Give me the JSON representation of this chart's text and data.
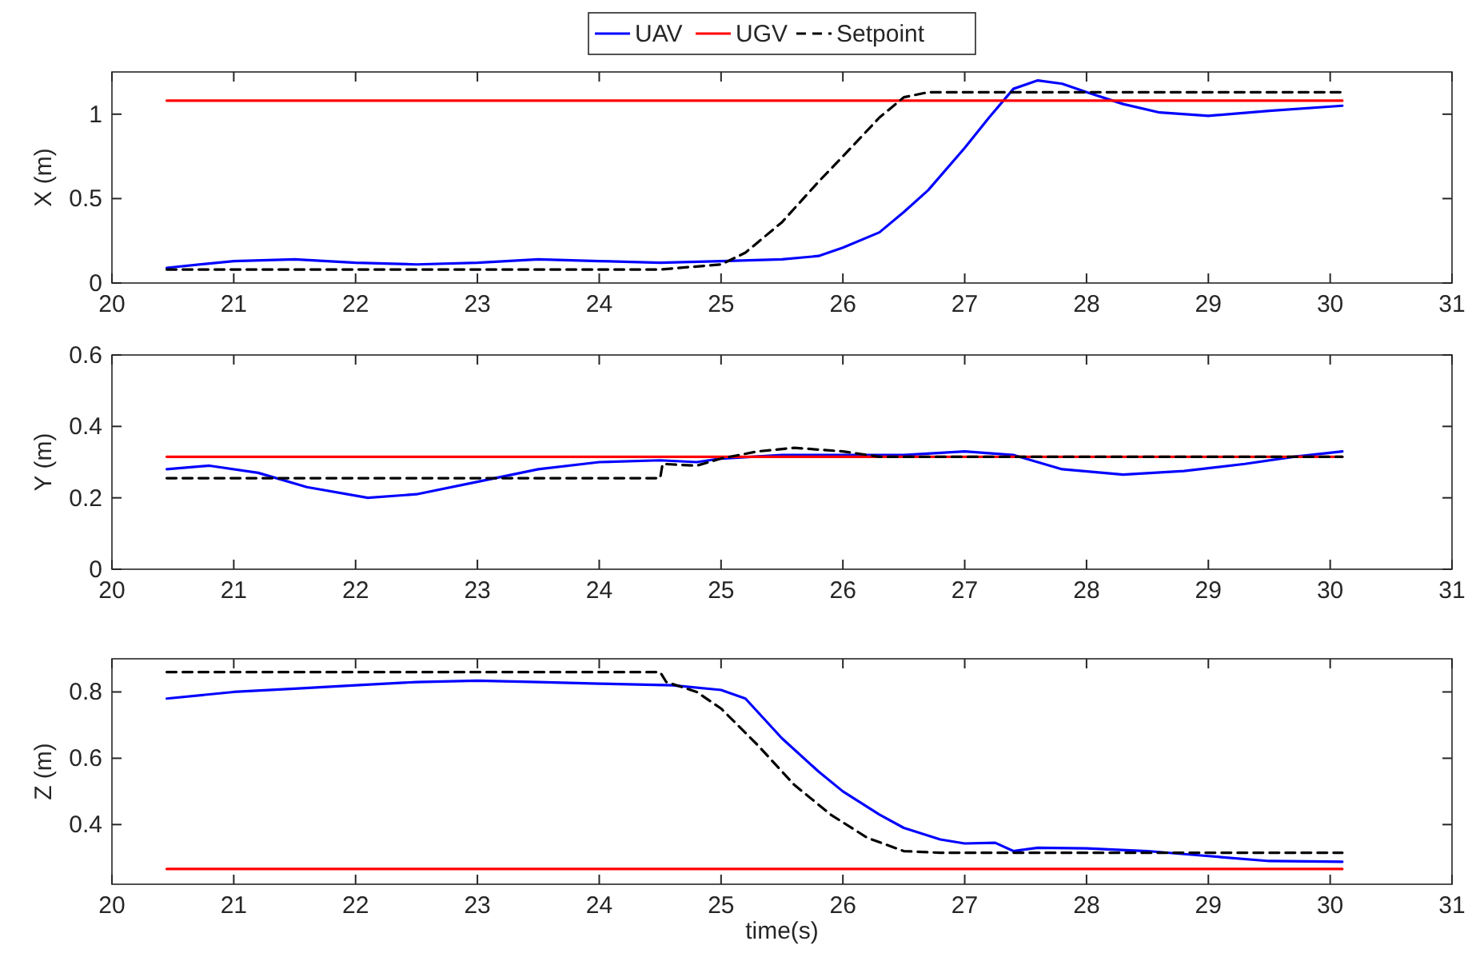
{
  "chart_data": [
    {
      "type": "line",
      "ylabel": "X (m)",
      "xlim": [
        20,
        31
      ],
      "xticks": [
        20,
        21,
        22,
        23,
        24,
        25,
        26,
        27,
        28,
        29,
        30,
        31
      ],
      "ylim": [
        0,
        1.25
      ],
      "yticks": [
        0,
        0.5,
        1
      ],
      "grid": false,
      "legend": "top",
      "series": [
        {
          "name": "UAV",
          "color": "#0000ff",
          "x": [
            20.45,
            21,
            21.5,
            22,
            22.5,
            23,
            23.5,
            24,
            24.5,
            25,
            25.5,
            25.8,
            26,
            26.3,
            26.5,
            26.7,
            27,
            27.2,
            27.4,
            27.6,
            27.8,
            28,
            28.3,
            28.6,
            29,
            29.5,
            30.1
          ],
          "values": [
            0.09,
            0.13,
            0.14,
            0.12,
            0.11,
            0.12,
            0.14,
            0.13,
            0.12,
            0.13,
            0.14,
            0.16,
            0.21,
            0.3,
            0.42,
            0.55,
            0.8,
            0.98,
            1.15,
            1.2,
            1.18,
            1.13,
            1.06,
            1.01,
            0.99,
            1.02,
            1.05
          ]
        },
        {
          "name": "UGV",
          "color": "#ff0000",
          "x": [
            20.45,
            30.1
          ],
          "values": [
            1.08,
            1.08
          ]
        },
        {
          "name": "Setpoint",
          "color": "#000000",
          "line_style": "dashed",
          "x": [
            20.45,
            24.5,
            25,
            25.2,
            25.5,
            25.8,
            26,
            26.3,
            26.5,
            26.7,
            30.1
          ],
          "values": [
            0.08,
            0.08,
            0.11,
            0.18,
            0.36,
            0.6,
            0.75,
            0.98,
            1.1,
            1.13,
            1.13
          ]
        }
      ]
    },
    {
      "type": "line",
      "ylabel": "Y (m)",
      "xlim": [
        20,
        31
      ],
      "xticks": [
        20,
        21,
        22,
        23,
        24,
        25,
        26,
        27,
        28,
        29,
        30,
        31
      ],
      "ylim": [
        0,
        0.6
      ],
      "yticks": [
        0,
        0.2,
        0.4,
        0.6
      ],
      "grid": false,
      "series": [
        {
          "color": "#0000ff",
          "x": [
            20.45,
            20.8,
            21.2,
            21.6,
            22.1,
            22.5,
            23,
            23.5,
            24,
            24.5,
            24.8,
            25,
            25.5,
            26,
            26.5,
            27,
            27.4,
            27.8,
            28.3,
            28.8,
            29.3,
            29.7,
            30.1
          ],
          "values": [
            0.28,
            0.29,
            0.27,
            0.23,
            0.2,
            0.21,
            0.245,
            0.28,
            0.3,
            0.305,
            0.3,
            0.31,
            0.32,
            0.32,
            0.32,
            0.33,
            0.32,
            0.28,
            0.265,
            0.275,
            0.295,
            0.315,
            0.33
          ]
        },
        {
          "color": "#ff0000",
          "x": [
            20.45,
            30.1
          ],
          "values": [
            0.315,
            0.315
          ]
        },
        {
          "color": "#000000",
          "line_style": "dashed",
          "x": [
            20.45,
            24.5,
            24.52,
            24.8,
            25,
            25.3,
            25.6,
            26,
            26.3,
            30.1
          ],
          "values": [
            0.255,
            0.255,
            0.295,
            0.29,
            0.31,
            0.33,
            0.34,
            0.33,
            0.315,
            0.315
          ]
        }
      ]
    },
    {
      "type": "line",
      "ylabel": "Z (m)",
      "xlabel": "time(s)",
      "xlim": [
        20,
        31
      ],
      "xticks": [
        20,
        21,
        22,
        23,
        24,
        25,
        26,
        27,
        28,
        29,
        30,
        31
      ],
      "ylim": [
        0.22,
        0.9
      ],
      "yticks": [
        0.4,
        0.6,
        0.8
      ],
      "grid": false,
      "series": [
        {
          "color": "#0000ff",
          "x": [
            20.45,
            21,
            21.5,
            22,
            22.5,
            23,
            23.5,
            24,
            24.6,
            25,
            25.2,
            25.5,
            25.8,
            26,
            26.3,
            26.5,
            26.8,
            27,
            27.25,
            27.4,
            27.6,
            28,
            28.5,
            29,
            29.5,
            30.1
          ],
          "values": [
            0.78,
            0.8,
            0.81,
            0.82,
            0.83,
            0.834,
            0.83,
            0.825,
            0.82,
            0.806,
            0.78,
            0.66,
            0.56,
            0.5,
            0.43,
            0.39,
            0.355,
            0.343,
            0.345,
            0.32,
            0.33,
            0.328,
            0.32,
            0.305,
            0.29,
            0.288
          ]
        },
        {
          "color": "#ff0000",
          "x": [
            20.45,
            30.1
          ],
          "values": [
            0.266,
            0.266
          ]
        },
        {
          "color": "#000000",
          "line_style": "dashed",
          "x": [
            20.45,
            24.5,
            24.55,
            24.8,
            25,
            25.3,
            25.6,
            25.9,
            26.2,
            26.5,
            26.8,
            30.1
          ],
          "values": [
            0.86,
            0.86,
            0.83,
            0.8,
            0.75,
            0.64,
            0.52,
            0.43,
            0.36,
            0.32,
            0.315,
            0.315
          ]
        }
      ]
    }
  ]
}
